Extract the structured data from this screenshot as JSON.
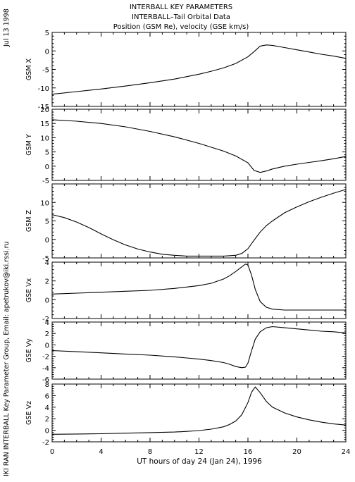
{
  "header": {
    "title1": "INTERBALL KEY PARAMETERS",
    "title2": "INTERBALL–Tail Orbital Data",
    "title3": "Position (GSM Re), velocity (GSE km/s)"
  },
  "side": {
    "date": "Jul 13 1998",
    "credit": "IKI RAN INTERBALL Key Parameter Group, Email: apetrukov@iki.rssi.ru"
  },
  "xaxis_label": "UT hours of day  24 (Jan 24), 1996",
  "chart_data": {
    "type": "line",
    "x_range": [
      0,
      24
    ],
    "x_ticks": [
      0,
      4,
      8,
      12,
      16,
      20,
      24
    ],
    "xlabel": "UT hours of day  24 (Jan 24), 1996",
    "panels": [
      {
        "ylabel": "GSM X",
        "ylim": [
          -15,
          5
        ],
        "yticks": [
          -15,
          -10,
          -5,
          0,
          5
        ],
        "x": [
          0,
          2,
          4,
          6,
          8,
          10,
          12,
          13,
          14,
          15,
          16,
          16.5,
          17,
          17.5,
          18,
          19,
          20,
          21,
          22,
          23,
          24
        ],
        "y": [
          -11.7,
          -11.0,
          -10.3,
          -9.5,
          -8.6,
          -7.6,
          -6.3,
          -5.5,
          -4.6,
          -3.4,
          -1.6,
          -0.2,
          1.3,
          1.6,
          1.5,
          0.9,
          0.3,
          -0.3,
          -0.9,
          -1.4,
          -2.0
        ]
      },
      {
        "ylabel": "GSM Y",
        "ylim": [
          -5,
          20
        ],
        "yticks": [
          -5,
          0,
          5,
          10,
          15,
          20
        ],
        "x": [
          0,
          2,
          4,
          6,
          8,
          10,
          12,
          14,
          15,
          16,
          16.5,
          17,
          17.5,
          18,
          19,
          20,
          21,
          22,
          23,
          24
        ],
        "y": [
          16.3,
          15.8,
          15.0,
          13.8,
          12.2,
          10.3,
          8.0,
          5.3,
          3.6,
          1.2,
          -1.5,
          -2.2,
          -1.7,
          -1.0,
          0.0,
          0.7,
          1.3,
          1.9,
          2.6,
          3.4
        ]
      },
      {
        "ylabel": "GSM Z",
        "ylim": [
          -5,
          15
        ],
        "yticks": [
          -5,
          0,
          5,
          10
        ],
        "x": [
          0,
          1,
          2,
          3,
          4,
          5,
          6,
          7,
          8,
          9,
          10,
          11,
          12,
          13,
          14,
          15,
          15.5,
          16,
          16.5,
          17,
          17.5,
          18,
          19,
          20,
          21,
          22,
          23,
          24
        ],
        "y": [
          6.7,
          5.9,
          4.7,
          3.2,
          1.5,
          -0.1,
          -1.5,
          -2.6,
          -3.4,
          -4.0,
          -4.3,
          -4.5,
          -4.5,
          -4.5,
          -4.5,
          -4.3,
          -3.8,
          -2.5,
          -0.2,
          2.0,
          3.7,
          5.0,
          7.2,
          8.8,
          10.2,
          11.4,
          12.5,
          13.5
        ]
      },
      {
        "ylabel": "GSE Vx",
        "ylim": [
          -2,
          4
        ],
        "yticks": [
          -2,
          0,
          2,
          4
        ],
        "x": [
          0,
          2,
          4,
          6,
          8,
          10,
          11,
          12,
          13,
          14,
          14.5,
          15,
          15.5,
          15.8,
          16,
          16.3,
          16.6,
          17,
          17.5,
          18,
          19,
          20,
          21,
          22,
          23,
          24
        ],
        "y": [
          0.6,
          0.7,
          0.8,
          0.9,
          1.0,
          1.2,
          1.35,
          1.5,
          1.75,
          2.2,
          2.55,
          3.0,
          3.5,
          3.8,
          3.7,
          2.6,
          1.1,
          -0.2,
          -0.8,
          -1.0,
          -1.1,
          -1.1,
          -1.1,
          -1.1,
          -1.1,
          -1.1
        ]
      },
      {
        "ylabel": "GSE Vy",
        "ylim": [
          -6,
          4
        ],
        "yticks": [
          -6,
          -4,
          -2,
          0,
          2,
          4
        ],
        "x": [
          0,
          2,
          4,
          6,
          8,
          10,
          11,
          12,
          13,
          14,
          14.5,
          15,
          15.5,
          15.8,
          16,
          16.3,
          16.6,
          17,
          17.5,
          18,
          19,
          20,
          21,
          22,
          23,
          24
        ],
        "y": [
          -1.0,
          -1.2,
          -1.4,
          -1.6,
          -1.8,
          -2.1,
          -2.3,
          -2.5,
          -2.75,
          -3.1,
          -3.4,
          -3.8,
          -4.0,
          -3.9,
          -3.2,
          -1.0,
          1.0,
          2.3,
          3.0,
          3.2,
          3.0,
          2.8,
          2.6,
          2.4,
          2.3,
          2.1
        ]
      },
      {
        "ylabel": "GSE Vz",
        "ylim": [
          -2,
          8
        ],
        "yticks": [
          -2,
          0,
          2,
          4,
          6,
          8
        ],
        "x": [
          0,
          2,
          4,
          6,
          8,
          10,
          11,
          12,
          13,
          14,
          14.5,
          15,
          15.5,
          16,
          16.3,
          16.6,
          17,
          17.5,
          18,
          19,
          20,
          21,
          22,
          23,
          24
        ],
        "y": [
          -0.7,
          -0.65,
          -0.6,
          -0.5,
          -0.4,
          -0.3,
          -0.2,
          -0.05,
          0.2,
          0.6,
          1.0,
          1.6,
          2.7,
          4.8,
          6.6,
          7.5,
          6.5,
          5.0,
          4.0,
          3.0,
          2.3,
          1.8,
          1.4,
          1.1,
          0.9
        ]
      }
    ]
  }
}
